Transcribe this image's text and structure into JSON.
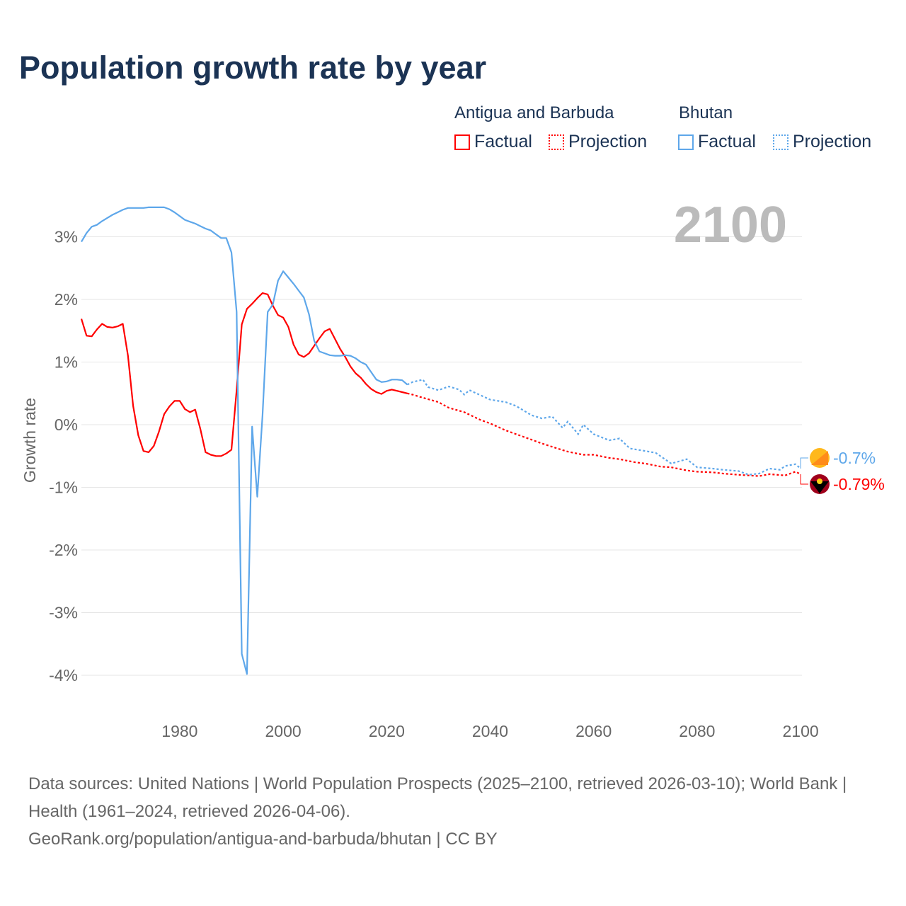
{
  "chart_data": {
    "type": "line",
    "title": "Population growth rate by year",
    "ylabel": "Growth rate",
    "xlabel": "",
    "xlim": [
      1961,
      2100
    ],
    "ylim": [
      -4.4,
      3.7
    ],
    "xticks": [
      1980,
      2000,
      2020,
      2040,
      2060,
      2080,
      2100
    ],
    "yticks": [
      3,
      2,
      1,
      0,
      -1,
      -2,
      -3,
      -4
    ],
    "ytick_labels": [
      "3%",
      "2%",
      "1%",
      "0%",
      "-1%",
      "-2%",
      "-3%",
      "-4%"
    ],
    "xtick_labels": [
      "1980",
      "2000",
      "2020",
      "2040",
      "2060",
      "2080",
      "2100"
    ],
    "year_label": "2100",
    "legend_placement": "top-right",
    "series": [
      {
        "name": "Antigua and Barbuda",
        "color": "#ff0000",
        "end_label": "-0.79%",
        "factual": [
          [
            1961,
            1.69
          ],
          [
            1962,
            1.42
          ],
          [
            1963,
            1.41
          ],
          [
            1964,
            1.52
          ],
          [
            1965,
            1.61
          ],
          [
            1966,
            1.56
          ],
          [
            1967,
            1.55
          ],
          [
            1968,
            1.57
          ],
          [
            1969,
            1.61
          ],
          [
            1970,
            1.1
          ],
          [
            1971,
            0.3
          ],
          [
            1972,
            -0.17
          ],
          [
            1973,
            -0.42
          ],
          [
            1974,
            -0.44
          ],
          [
            1975,
            -0.34
          ],
          [
            1976,
            -0.11
          ],
          [
            1977,
            0.17
          ],
          [
            1978,
            0.29
          ],
          [
            1979,
            0.38
          ],
          [
            1980,
            0.38
          ],
          [
            1981,
            0.25
          ],
          [
            1982,
            0.2
          ],
          [
            1983,
            0.24
          ],
          [
            1984,
            -0.07
          ],
          [
            1985,
            -0.44
          ],
          [
            1986,
            -0.48
          ],
          [
            1987,
            -0.5
          ],
          [
            1988,
            -0.5
          ],
          [
            1989,
            -0.46
          ],
          [
            1990,
            -0.4
          ],
          [
            1991,
            0.55
          ],
          [
            1992,
            1.6
          ],
          [
            1993,
            1.85
          ],
          [
            1994,
            1.93
          ],
          [
            1995,
            2.02
          ],
          [
            1996,
            2.1
          ],
          [
            1997,
            2.08
          ],
          [
            1998,
            1.9
          ],
          [
            1999,
            1.75
          ],
          [
            2000,
            1.71
          ],
          [
            2001,
            1.56
          ],
          [
            2002,
            1.28
          ],
          [
            2003,
            1.12
          ],
          [
            2004,
            1.08
          ],
          [
            2005,
            1.14
          ],
          [
            2006,
            1.26
          ],
          [
            2007,
            1.38
          ],
          [
            2008,
            1.49
          ],
          [
            2009,
            1.53
          ],
          [
            2010,
            1.37
          ],
          [
            2011,
            1.21
          ],
          [
            2012,
            1.08
          ],
          [
            2013,
            0.93
          ],
          [
            2014,
            0.82
          ],
          [
            2015,
            0.75
          ],
          [
            2016,
            0.65
          ],
          [
            2017,
            0.57
          ],
          [
            2018,
            0.52
          ],
          [
            2019,
            0.49
          ],
          [
            2020,
            0.54
          ],
          [
            2021,
            0.56
          ],
          [
            2022,
            0.54
          ],
          [
            2023,
            0.52
          ],
          [
            2024,
            0.5
          ]
        ],
        "projection": [
          [
            2024,
            0.5
          ],
          [
            2025,
            0.48
          ],
          [
            2027,
            0.43
          ],
          [
            2030,
            0.36
          ],
          [
            2032,
            0.27
          ],
          [
            2035,
            0.2
          ],
          [
            2038,
            0.08
          ],
          [
            2040,
            0.02
          ],
          [
            2043,
            -0.09
          ],
          [
            2045,
            -0.15
          ],
          [
            2048,
            -0.24
          ],
          [
            2050,
            -0.3
          ],
          [
            2053,
            -0.38
          ],
          [
            2055,
            -0.43
          ],
          [
            2058,
            -0.48
          ],
          [
            2060,
            -0.48
          ],
          [
            2063,
            -0.53
          ],
          [
            2065,
            -0.55
          ],
          [
            2068,
            -0.6
          ],
          [
            2070,
            -0.62
          ],
          [
            2073,
            -0.67
          ],
          [
            2075,
            -0.68
          ],
          [
            2078,
            -0.73
          ],
          [
            2080,
            -0.75
          ],
          [
            2083,
            -0.76
          ],
          [
            2085,
            -0.78
          ],
          [
            2088,
            -0.8
          ],
          [
            2090,
            -0.81
          ],
          [
            2092,
            -0.82
          ],
          [
            2094,
            -0.79
          ],
          [
            2097,
            -0.81
          ],
          [
            2099,
            -0.75
          ],
          [
            2100,
            -0.79
          ]
        ]
      },
      {
        "name": "Bhutan",
        "color": "#5ea7ea",
        "end_label": "-0.7%",
        "factual": [
          [
            1961,
            2.92
          ],
          [
            1962,
            3.06
          ],
          [
            1963,
            3.16
          ],
          [
            1964,
            3.19
          ],
          [
            1965,
            3.25
          ],
          [
            1966,
            3.3
          ],
          [
            1967,
            3.35
          ],
          [
            1968,
            3.39
          ],
          [
            1969,
            3.43
          ],
          [
            1970,
            3.46
          ],
          [
            1971,
            3.46
          ],
          [
            1972,
            3.46
          ],
          [
            1973,
            3.46
          ],
          [
            1974,
            3.47
          ],
          [
            1975,
            3.47
          ],
          [
            1976,
            3.47
          ],
          [
            1977,
            3.47
          ],
          [
            1978,
            3.44
          ],
          [
            1979,
            3.39
          ],
          [
            1980,
            3.33
          ],
          [
            1981,
            3.27
          ],
          [
            1982,
            3.24
          ],
          [
            1983,
            3.21
          ],
          [
            1984,
            3.17
          ],
          [
            1985,
            3.13
          ],
          [
            1986,
            3.1
          ],
          [
            1987,
            3.04
          ],
          [
            1988,
            2.98
          ],
          [
            1989,
            2.98
          ],
          [
            1990,
            2.75
          ],
          [
            1991,
            1.8
          ],
          [
            1992,
            -3.66
          ],
          [
            1993,
            -3.98
          ],
          [
            1994,
            -0.03
          ],
          [
            1995,
            -1.15
          ],
          [
            1996,
            0.15
          ],
          [
            1997,
            1.8
          ],
          [
            1998,
            1.92
          ],
          [
            1999,
            2.3
          ],
          [
            2000,
            2.45
          ],
          [
            2001,
            2.35
          ],
          [
            2002,
            2.25
          ],
          [
            2003,
            2.14
          ],
          [
            2004,
            2.03
          ],
          [
            2005,
            1.76
          ],
          [
            2006,
            1.34
          ],
          [
            2007,
            1.17
          ],
          [
            2008,
            1.14
          ],
          [
            2009,
            1.11
          ],
          [
            2010,
            1.1
          ],
          [
            2011,
            1.1
          ],
          [
            2012,
            1.11
          ],
          [
            2013,
            1.1
          ],
          [
            2014,
            1.06
          ],
          [
            2015,
            1.0
          ],
          [
            2016,
            0.96
          ],
          [
            2017,
            0.84
          ],
          [
            2018,
            0.72
          ],
          [
            2019,
            0.68
          ],
          [
            2020,
            0.69
          ],
          [
            2021,
            0.72
          ],
          [
            2022,
            0.72
          ],
          [
            2023,
            0.71
          ],
          [
            2024,
            0.64
          ]
        ],
        "projection": [
          [
            2024,
            0.64
          ],
          [
            2025,
            0.68
          ],
          [
            2027,
            0.72
          ],
          [
            2028,
            0.6
          ],
          [
            2030,
            0.55
          ],
          [
            2032,
            0.61
          ],
          [
            2034,
            0.56
          ],
          [
            2035,
            0.48
          ],
          [
            2036,
            0.55
          ],
          [
            2040,
            0.4
          ],
          [
            2043,
            0.36
          ],
          [
            2045,
            0.3
          ],
          [
            2048,
            0.15
          ],
          [
            2050,
            0.1
          ],
          [
            2052,
            0.13
          ],
          [
            2054,
            -0.05
          ],
          [
            2055,
            0.05
          ],
          [
            2057,
            -0.15
          ],
          [
            2058,
            0.0
          ],
          [
            2060,
            -0.15
          ],
          [
            2063,
            -0.25
          ],
          [
            2065,
            -0.22
          ],
          [
            2067,
            -0.38
          ],
          [
            2070,
            -0.42
          ],
          [
            2072,
            -0.45
          ],
          [
            2075,
            -0.62
          ],
          [
            2078,
            -0.55
          ],
          [
            2080,
            -0.68
          ],
          [
            2083,
            -0.7
          ],
          [
            2085,
            -0.72
          ],
          [
            2088,
            -0.74
          ],
          [
            2090,
            -0.8
          ],
          [
            2092,
            -0.78
          ],
          [
            2094,
            -0.7
          ],
          [
            2096,
            -0.72
          ],
          [
            2097,
            -0.66
          ],
          [
            2099,
            -0.63
          ],
          [
            2100,
            -0.7
          ]
        ]
      }
    ]
  },
  "legend": {
    "group1": "Antigua and Barbuda",
    "group2": "Bhutan",
    "factual": "Factual",
    "projection": "Projection"
  },
  "footer": {
    "sources": "Data sources: United Nations | World Population Prospects (2025–2100, retrieved 2026-03-10); World Bank | Health (1961–2024, retrieved 2026-04-06).",
    "credit": "GeoRank.org/population/antigua-and-barbuda/bhutan | CC BY"
  }
}
